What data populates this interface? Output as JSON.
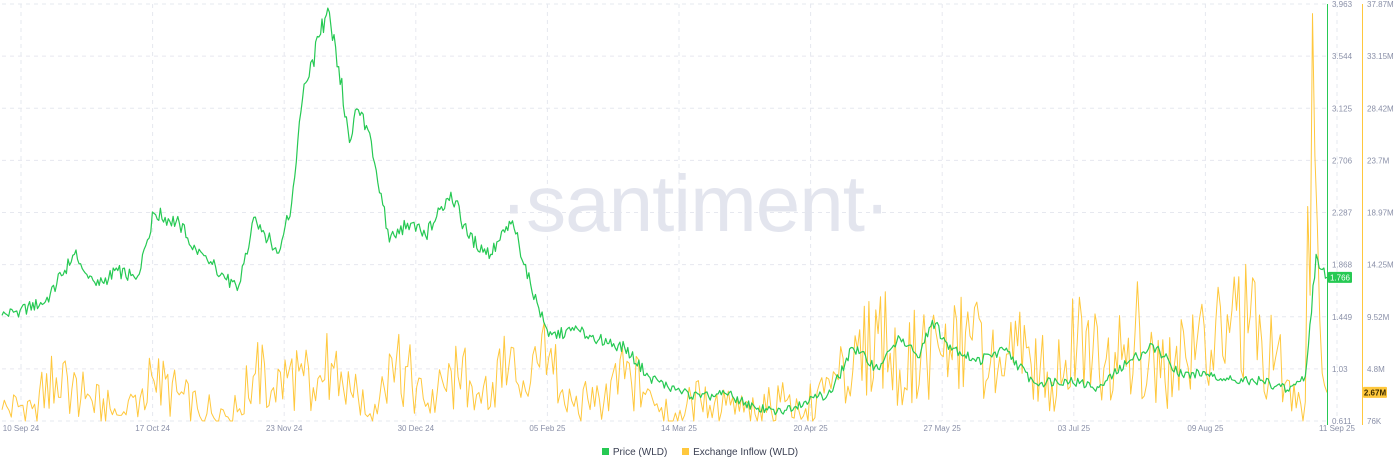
{
  "watermark": "·santiment·",
  "legend": {
    "price_label": "Price (WLD)",
    "inflow_label": "Exchange Inflow (WLD)"
  },
  "badges": {
    "price_current": "1.766",
    "inflow_current": "2.67M"
  },
  "colors": {
    "price": "#26c953",
    "inflow": "#ffc83d",
    "grid": "#e6e8ef",
    "tick": "#8a90a8"
  },
  "chart_data": {
    "type": "line",
    "x_tick_labels": [
      "10 Sep 24",
      "17 Oct 24",
      "23 Nov 24",
      "30 Dec 24",
      "05 Feb 25",
      "14 Mar 25",
      "20 Apr 25",
      "27 May 25",
      "03 Jul 25",
      "09 Aug 25",
      "11 Sep 25"
    ],
    "price_axis": {
      "ticks": [
        "3.963",
        "3.544",
        "3.125",
        "2.706",
        "2.287",
        "1.868",
        "1.449",
        "1.03",
        "0.611"
      ],
      "ylim": [
        0.611,
        3.963
      ]
    },
    "inflow_axis": {
      "ticks": [
        "37.87M",
        "33.15M",
        "28.42M",
        "23.7M",
        "18.97M",
        "14.25M",
        "9.52M",
        "4.8M",
        "76K"
      ],
      "ylim": [
        0.076,
        37.87
      ],
      "unit": "M"
    },
    "grid": true,
    "legend_position": "bottom-center",
    "series": [
      {
        "name": "Price (WLD)",
        "axis": "price",
        "points": [
          [
            "2024-09-10",
            1.46
          ],
          [
            "2024-09-15",
            1.5
          ],
          [
            "2024-09-22",
            1.57
          ],
          [
            "2024-09-30",
            1.95
          ],
          [
            "2024-10-03",
            1.8
          ],
          [
            "2024-10-06",
            1.7
          ],
          [
            "2024-10-12",
            1.82
          ],
          [
            "2024-10-17",
            1.75
          ],
          [
            "2024-10-22",
            2.28
          ],
          [
            "2024-10-29",
            2.2
          ],
          [
            "2024-11-03",
            1.95
          ],
          [
            "2024-11-08",
            1.85
          ],
          [
            "2024-11-14",
            1.66
          ],
          [
            "2024-11-19",
            2.25
          ],
          [
            "2024-11-25",
            1.96
          ],
          [
            "2024-11-29",
            2.36
          ],
          [
            "2024-12-02",
            3.2
          ],
          [
            "2024-12-07",
            3.72
          ],
          [
            "2024-12-09",
            3.93
          ],
          [
            "2024-12-12",
            3.46
          ],
          [
            "2024-12-15",
            2.85
          ],
          [
            "2024-12-17",
            3.12
          ],
          [
            "2024-12-21",
            2.86
          ],
          [
            "2024-12-26",
            2.05
          ],
          [
            "2024-12-31",
            2.2
          ],
          [
            "2025-01-05",
            2.1
          ],
          [
            "2025-01-12",
            2.45
          ],
          [
            "2025-01-17",
            2.08
          ],
          [
            "2025-01-23",
            1.95
          ],
          [
            "2025-01-29",
            2.22
          ],
          [
            "2025-02-03",
            1.71
          ],
          [
            "2025-02-08",
            1.29
          ],
          [
            "2025-02-15",
            1.34
          ],
          [
            "2025-02-22",
            1.27
          ],
          [
            "2025-03-01",
            1.2
          ],
          [
            "2025-03-08",
            0.96
          ],
          [
            "2025-03-15",
            0.86
          ],
          [
            "2025-03-22",
            0.8
          ],
          [
            "2025-03-29",
            0.83
          ],
          [
            "2025-04-06",
            0.72
          ],
          [
            "2025-04-12",
            0.68
          ],
          [
            "2025-04-20",
            0.77
          ],
          [
            "2025-04-27",
            0.84
          ],
          [
            "2025-05-03",
            1.2
          ],
          [
            "2025-05-10",
            1.03
          ],
          [
            "2025-05-16",
            1.28
          ],
          [
            "2025-05-21",
            1.12
          ],
          [
            "2025-05-25",
            1.42
          ],
          [
            "2025-05-29",
            1.24
          ],
          [
            "2025-06-06",
            1.09
          ],
          [
            "2025-06-14",
            1.18
          ],
          [
            "2025-06-22",
            0.92
          ],
          [
            "2025-07-01",
            0.94
          ],
          [
            "2025-07-10",
            0.88
          ],
          [
            "2025-07-18",
            1.08
          ],
          [
            "2025-07-25",
            1.22
          ],
          [
            "2025-08-02",
            0.98
          ],
          [
            "2025-08-10",
            1.0
          ],
          [
            "2025-08-17",
            0.92
          ],
          [
            "2025-08-24",
            0.94
          ],
          [
            "2025-08-31",
            0.86
          ],
          [
            "2025-09-05",
            0.97
          ],
          [
            "2025-09-08",
            1.95
          ],
          [
            "2025-09-11",
            1.766
          ]
        ]
      },
      {
        "name": "Exchange Inflow (WLD)",
        "axis": "inflow",
        "points": [
          [
            "2024-09-10",
            1.1
          ],
          [
            "2024-09-19",
            1.6
          ],
          [
            "2024-09-25",
            4.0
          ],
          [
            "2024-10-03",
            2.1
          ],
          [
            "2024-10-13",
            0.6
          ],
          [
            "2024-10-22",
            3.7
          ],
          [
            "2024-11-03",
            1.2
          ],
          [
            "2024-11-14",
            0.9
          ],
          [
            "2024-11-19",
            4.4
          ],
          [
            "2024-11-24",
            3.1
          ],
          [
            "2024-12-01",
            4.6
          ],
          [
            "2024-12-05",
            3.1
          ],
          [
            "2024-12-10",
            5.3
          ],
          [
            "2024-12-16",
            2.2
          ],
          [
            "2024-12-22",
            1.6
          ],
          [
            "2024-12-28",
            5.9
          ],
          [
            "2025-01-05",
            1.4
          ],
          [
            "2025-01-14",
            4.1
          ],
          [
            "2025-01-21",
            3.2
          ],
          [
            "2025-01-28",
            5.0
          ],
          [
            "2025-02-03",
            3.6
          ],
          [
            "2025-02-08",
            5.8
          ],
          [
            "2025-02-15",
            1.4
          ],
          [
            "2025-02-22",
            2.1
          ],
          [
            "2025-03-01",
            3.9
          ],
          [
            "2025-03-08",
            2.8
          ],
          [
            "2025-03-15",
            0.8
          ],
          [
            "2025-03-22",
            2.0
          ],
          [
            "2025-03-29",
            1.5
          ],
          [
            "2025-04-06",
            0.7
          ],
          [
            "2025-04-13",
            1.8
          ],
          [
            "2025-04-20",
            1.2
          ],
          [
            "2025-04-27",
            3.0
          ],
          [
            "2025-05-03",
            4.6
          ],
          [
            "2025-05-10",
            8.0
          ],
          [
            "2025-05-16",
            4.7
          ],
          [
            "2025-05-22",
            6.7
          ],
          [
            "2025-05-28",
            5.9
          ],
          [
            "2025-06-05",
            7.4
          ],
          [
            "2025-06-12",
            4.5
          ],
          [
            "2025-06-20",
            6.7
          ],
          [
            "2025-06-27",
            3.6
          ],
          [
            "2025-07-04",
            7.2
          ],
          [
            "2025-07-12",
            5.7
          ],
          [
            "2025-07-20",
            8.2
          ],
          [
            "2025-07-27",
            4.0
          ],
          [
            "2025-08-03",
            5.8
          ],
          [
            "2025-08-10",
            6.5
          ],
          [
            "2025-08-17",
            10.1
          ],
          [
            "2025-08-24",
            7.3
          ],
          [
            "2025-08-31",
            3.8
          ],
          [
            "2025-09-05",
            1.8
          ],
          [
            "2025-09-07",
            37.0
          ],
          [
            "2025-09-09",
            9.2
          ],
          [
            "2025-09-11",
            2.67
          ]
        ]
      }
    ]
  }
}
